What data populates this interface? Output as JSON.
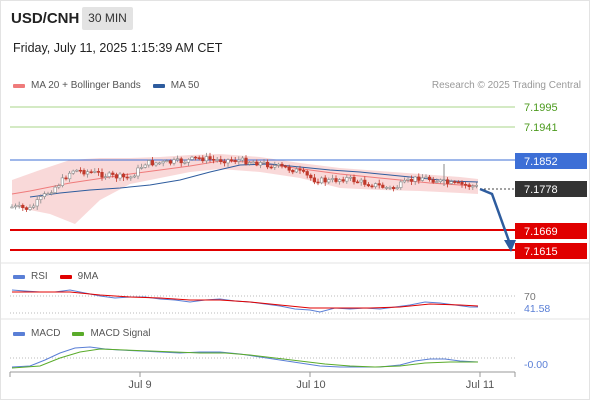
{
  "header": {
    "symbol": "USD/CNH",
    "timeframe": "30 MIN",
    "datetime": "Friday, July 11, 2025 1:15:39 AM CET"
  },
  "legend_main": [
    {
      "label": "MA 20 + Bollinger Bands",
      "color": "#ef7b7b"
    },
    {
      "label": "MA 50",
      "color": "#2e5c9e"
    }
  ],
  "copyright": "Research © 2025 Trading Central",
  "price_levels": [
    {
      "label": "7.1995",
      "kind": "resistance-2",
      "color": "#7bbd3a"
    },
    {
      "label": "7.1941",
      "kind": "resistance-1",
      "color": "#7bbd3a"
    },
    {
      "label": "7.1852",
      "kind": "pivot",
      "color": "#3d6fd6"
    },
    {
      "label": "7.1778",
      "kind": "last-price",
      "color": "#333333"
    },
    {
      "label": "7.1669",
      "kind": "support-1",
      "color": "#e00000"
    },
    {
      "label": "7.1615",
      "kind": "support-2",
      "color": "#e00000"
    }
  ],
  "legend_rsi": [
    {
      "label": "RSI",
      "color": "#5a7fd6"
    },
    {
      "label": "9MA",
      "color": "#e00000"
    }
  ],
  "rsi_axis": {
    "upper": "70",
    "value": "41.58"
  },
  "legend_macd": [
    {
      "label": "MACD",
      "color": "#5a7fd6"
    },
    {
      "label": "MACD Signal",
      "color": "#5aab2a"
    }
  ],
  "macd_axis": {
    "value": "-0.00"
  },
  "x_axis_labels": [
    "Jul 9",
    "Jul 10",
    "Jul 11"
  ],
  "colors": {
    "bull_candle": "#8a8a8a",
    "bear_candle": "#c0392b",
    "band_fill": "#f7c9c9",
    "forecast_arrow": "#2e5c9e"
  }
}
